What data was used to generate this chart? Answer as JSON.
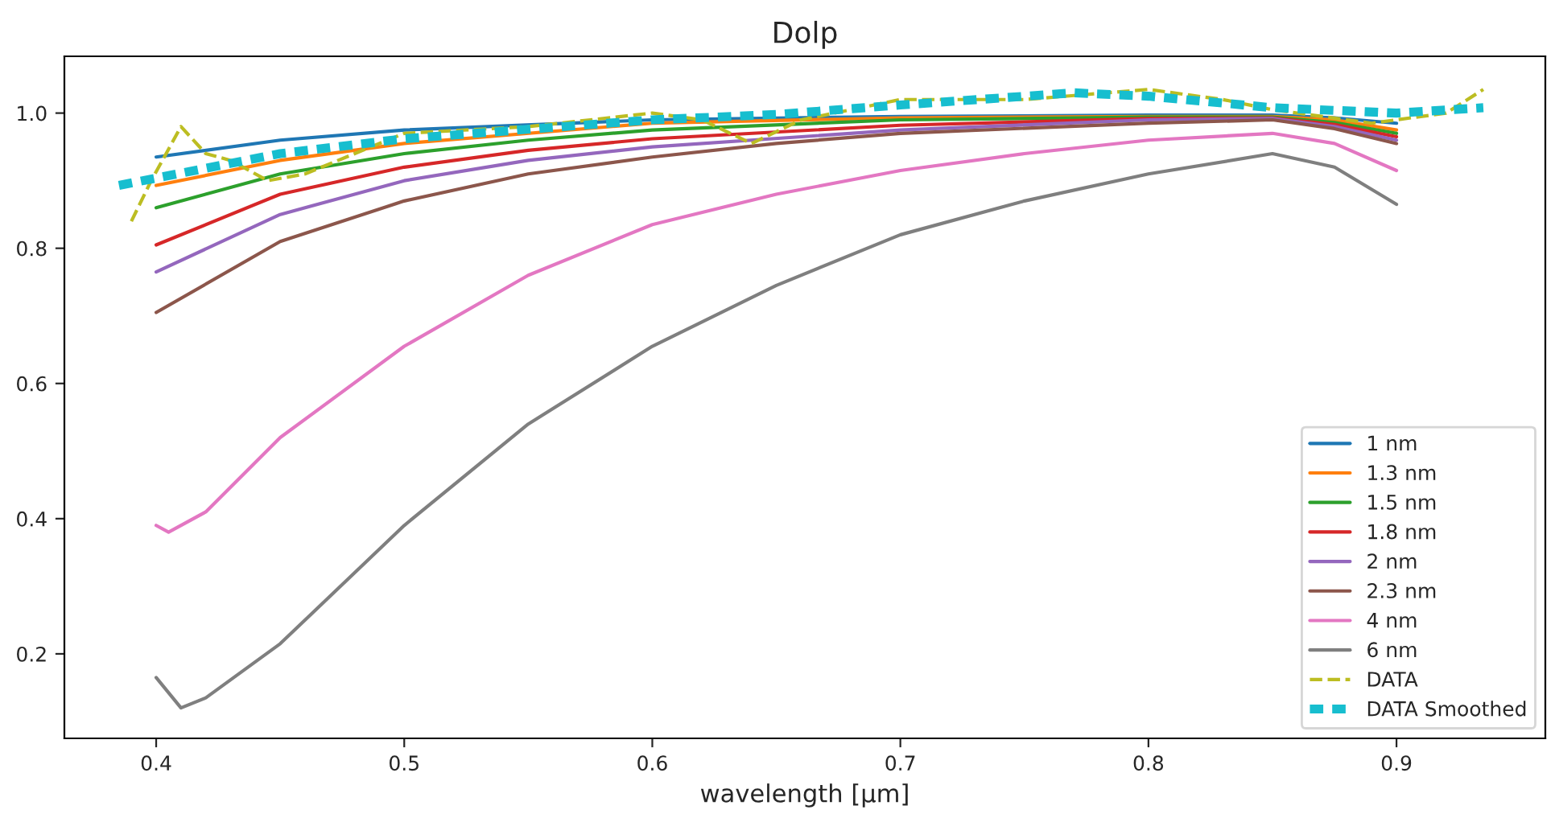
{
  "chart_data": {
    "type": "line",
    "title": "Dolp",
    "xlabel": "wavelength [μm]",
    "xlim": [
      0.363,
      0.96
    ],
    "ylim": [
      0.075,
      1.084
    ],
    "xticks": [
      0.4,
      0.5,
      0.6,
      0.7,
      0.8,
      0.9
    ],
    "yticks": [
      0.2,
      0.4,
      0.6,
      0.8,
      {
        "value": 1.0,
        "label": "1.0"
      }
    ],
    "grid": false,
    "legend": "bottom right",
    "line_style": "solid",
    "series": [
      {
        "name": "1 nm",
        "color": "#1f77b4",
        "x": [
          0.4,
          0.45,
          0.5,
          0.6,
          0.7,
          0.8,
          0.85,
          0.875,
          0.9
        ],
        "values": [
          0.935,
          0.96,
          0.975,
          0.99,
          0.995,
          0.997,
          0.997,
          0.993,
          0.985
        ]
      },
      {
        "name": "1.3 nm",
        "color": "#ff7f0e",
        "x": [
          0.4,
          0.45,
          0.5,
          0.6,
          0.7,
          0.8,
          0.85,
          0.875,
          0.9
        ],
        "values": [
          0.893,
          0.93,
          0.955,
          0.985,
          0.993,
          0.995,
          0.995,
          0.99,
          0.975
        ]
      },
      {
        "name": "1.5 nm",
        "color": "#2ca02c",
        "x": [
          0.4,
          0.45,
          0.5,
          0.55,
          0.6,
          0.7,
          0.8,
          0.85,
          0.875,
          0.9
        ],
        "values": [
          0.86,
          0.91,
          0.94,
          0.96,
          0.975,
          0.99,
          0.994,
          0.994,
          0.986,
          0.97
        ]
      },
      {
        "name": "1.8 nm",
        "color": "#d62728",
        "x": [
          0.4,
          0.45,
          0.5,
          0.55,
          0.6,
          0.7,
          0.8,
          0.85,
          0.875,
          0.9
        ],
        "values": [
          0.805,
          0.88,
          0.92,
          0.945,
          0.962,
          0.982,
          0.992,
          0.993,
          0.983,
          0.965
        ]
      },
      {
        "name": "2 nm",
        "color": "#9467bd",
        "x": [
          0.4,
          0.45,
          0.5,
          0.55,
          0.6,
          0.7,
          0.8,
          0.85,
          0.875,
          0.9
        ],
        "values": [
          0.765,
          0.85,
          0.9,
          0.93,
          0.95,
          0.975,
          0.99,
          0.992,
          0.98,
          0.96
        ]
      },
      {
        "name": "2.3 nm",
        "color": "#8c564b",
        "x": [
          0.4,
          0.45,
          0.5,
          0.55,
          0.6,
          0.65,
          0.7,
          0.8,
          0.85,
          0.875,
          0.9
        ],
        "values": [
          0.705,
          0.81,
          0.87,
          0.91,
          0.935,
          0.955,
          0.97,
          0.985,
          0.99,
          0.977,
          0.955
        ]
      },
      {
        "name": "4 nm",
        "color": "#e377c2",
        "x": [
          0.4,
          0.405,
          0.42,
          0.45,
          0.5,
          0.55,
          0.6,
          0.65,
          0.7,
          0.75,
          0.8,
          0.85,
          0.875,
          0.9
        ],
        "values": [
          0.39,
          0.38,
          0.41,
          0.52,
          0.655,
          0.76,
          0.835,
          0.88,
          0.915,
          0.94,
          0.96,
          0.97,
          0.955,
          0.915
        ]
      },
      {
        "name": "6 nm",
        "color": "#7f7f7f",
        "x": [
          0.4,
          0.41,
          0.42,
          0.45,
          0.5,
          0.55,
          0.6,
          0.65,
          0.7,
          0.75,
          0.8,
          0.85,
          0.875,
          0.9
        ],
        "values": [
          0.165,
          0.12,
          0.135,
          0.215,
          0.39,
          0.54,
          0.655,
          0.745,
          0.82,
          0.87,
          0.91,
          0.94,
          0.92,
          0.865
        ]
      },
      {
        "name": "DATA",
        "color": "#bcbd22",
        "line_style": "dashed",
        "x": [
          0.39,
          0.398,
          0.41,
          0.42,
          0.43,
          0.445,
          0.46,
          0.5,
          0.55,
          0.6,
          0.62,
          0.64,
          0.66,
          0.7,
          0.75,
          0.8,
          0.83,
          0.85,
          0.89,
          0.92,
          0.935
        ],
        "values": [
          0.84,
          0.9,
          0.98,
          0.94,
          0.93,
          0.9,
          0.91,
          0.97,
          0.98,
          1.0,
          0.99,
          0.955,
          0.99,
          1.02,
          1.02,
          1.035,
          1.02,
          1.005,
          0.985,
          1.0,
          1.035
        ]
      },
      {
        "name": "DATA Smoothed",
        "color": "#17becf",
        "line_style": "dashed",
        "x": [
          0.385,
          0.45,
          0.5,
          0.6,
          0.65,
          0.7,
          0.77,
          0.8,
          0.85,
          0.9,
          0.935
        ],
        "values": [
          0.893,
          0.94,
          0.962,
          0.99,
          0.998,
          1.012,
          1.03,
          1.025,
          1.008,
          1.0,
          1.008
        ]
      }
    ]
  }
}
